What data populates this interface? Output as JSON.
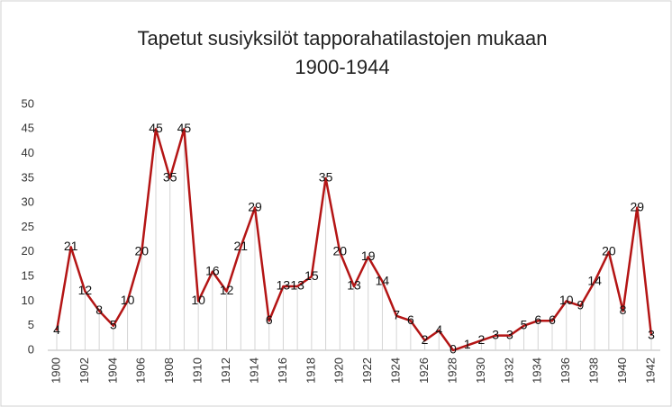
{
  "chart_data": {
    "type": "line",
    "title": [
      "Tapetut susiyksilöt tapporahatilastojen mukaan",
      "1900-1944"
    ],
    "categories": [
      "1900",
      null,
      "1902",
      null,
      "1904",
      null,
      "1906",
      null,
      "1908",
      null,
      "1910",
      null,
      "1912",
      null,
      "1914",
      null,
      "1916",
      null,
      "1918",
      null,
      "1920",
      null,
      "1922",
      null,
      "1924",
      null,
      "1926",
      null,
      "1928",
      null,
      "1930",
      null,
      "1932",
      null,
      "1934",
      null,
      "1936",
      null,
      "1938",
      null,
      "1940",
      null,
      "1942"
    ],
    "values": [
      4,
      21,
      12,
      8,
      5,
      10,
      20,
      45,
      35,
      45,
      10,
      16,
      12,
      21,
      29,
      6,
      13,
      13,
      15,
      35,
      20,
      13,
      19,
      14,
      7,
      6,
      2,
      4,
      0,
      1,
      2,
      3,
      3,
      5,
      6,
      6,
      10,
      9,
      14,
      20,
      8,
      29,
      3
    ],
    "color": "#b41515",
    "ylim": [
      0,
      50
    ],
    "yticks": [
      0,
      5,
      10,
      15,
      20,
      25,
      30,
      35,
      40,
      45,
      50
    ],
    "grid": false
  }
}
